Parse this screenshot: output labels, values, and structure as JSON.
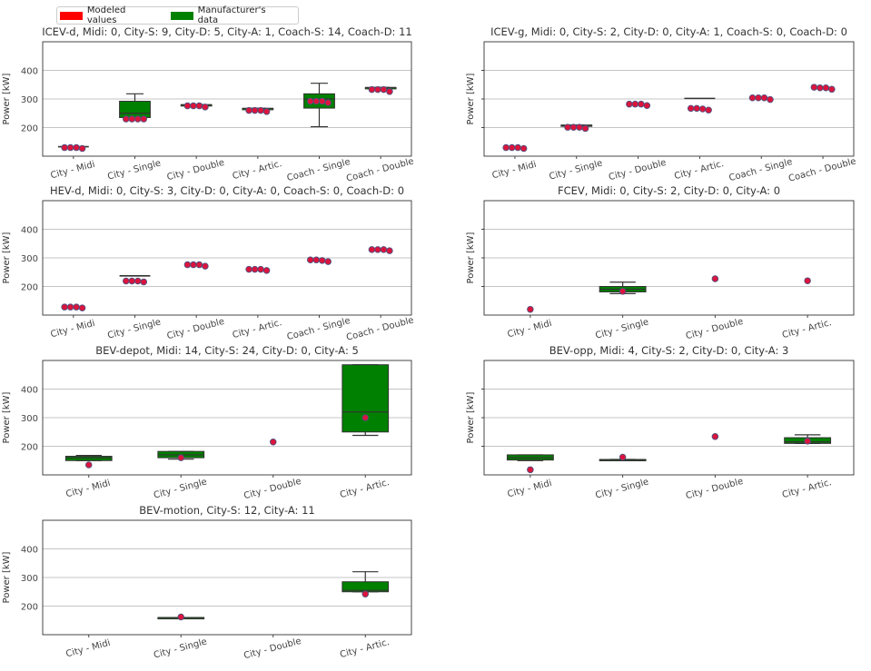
{
  "legend": {
    "entries": [
      {
        "label": "Modeled values",
        "color": "#ff0000"
      },
      {
        "label": "Manufacturer's data",
        "color": "#008000"
      }
    ]
  },
  "colors": {
    "box_fill": "#008000",
    "point_fill": "#dc143c",
    "point_edge": "#505080",
    "grid": "#b0b0b0"
  },
  "chart_data": [
    {
      "type": "box",
      "title": "ICEV-d, Midi: 0, City-S: 9, City-D: 5, City-A: 1, Coach-S: 14, Coach-D: 11",
      "ylabel": "Power [kW]",
      "ylim": [
        100,
        500
      ],
      "yticks": [
        200,
        300,
        400
      ],
      "show_ytick_labels": true,
      "categories": [
        "City - Midi",
        "City - Single",
        "City - Double",
        "City - Artic.",
        "Coach - Single",
        "Coach - Double"
      ],
      "boxes": [
        null,
        {
          "whislo": 228,
          "q1": 235,
          "med": 250,
          "q3": 292,
          "whishi": 318
        },
        {
          "whislo": 280,
          "q1": 280,
          "med": 280,
          "q3": 280,
          "whishi": 280
        },
        {
          "whislo": 267,
          "q1": 267,
          "med": 267,
          "q3": 267,
          "whishi": 267
        },
        {
          "whislo": 203,
          "q1": 268,
          "med": 300,
          "q3": 318,
          "whishi": 355
        },
        {
          "whislo": 340,
          "q1": 340,
          "med": 340,
          "q3": 340,
          "whishi": 340
        }
      ],
      "lines": [
        {
          "cat": 0,
          "value": 133
        }
      ],
      "points": [
        [
          130,
          130,
          130,
          127
        ],
        [
          230,
          230,
          230,
          230
        ],
        [
          276,
          276,
          276,
          272
        ],
        [
          260,
          260,
          260,
          256
        ],
        [
          292,
          292,
          292,
          287
        ],
        [
          333,
          333,
          333,
          326
        ]
      ]
    },
    {
      "type": "box",
      "title": "ICEV-g, Midi: 0, City-S: 2, City-D: 0, City-A: 1, Coach-S: 0, Coach-D: 0",
      "ylabel": "Power [kW]",
      "ylim": [
        100,
        500
      ],
      "yticks": [
        200,
        300,
        400
      ],
      "show_ytick_labels": false,
      "categories": [
        "City - Midi",
        "City - Single",
        "City - Double",
        "City - Artic.",
        "Coach - Single",
        "Coach - Double"
      ],
      "boxes": [
        null,
        {
          "whislo": 205,
          "q1": 205,
          "med": 207,
          "q3": 209,
          "whishi": 209
        },
        null,
        null,
        null,
        null
      ],
      "lines": [
        {
          "cat": 3,
          "value": 302
        }
      ],
      "points": [
        [
          130,
          130,
          130,
          127
        ],
        [
          201,
          201,
          201,
          197
        ],
        [
          282,
          282,
          282,
          277
        ],
        [
          267,
          267,
          265,
          261
        ],
        [
          304,
          304,
          304,
          298
        ],
        [
          341,
          339,
          339,
          334
        ]
      ]
    },
    {
      "type": "box",
      "title": "HEV-d, Midi: 0, City-S: 3, City-D: 0, City-A: 0, Coach-S: 0, Coach-D: 0",
      "ylabel": "Power [kW]",
      "ylim": [
        100,
        500
      ],
      "yticks": [
        200,
        300,
        400
      ],
      "show_ytick_labels": true,
      "categories": [
        "City - Midi",
        "City - Single",
        "City - Double",
        "City - Artic.",
        "Coach - Single",
        "Coach - Double"
      ],
      "boxes": [
        null,
        null,
        null,
        null,
        null,
        null
      ],
      "lines": [
        {
          "cat": 1,
          "value": 237
        }
      ],
      "points": [
        [
          128,
          128,
          128,
          125
        ],
        [
          219,
          219,
          219,
          216
        ],
        [
          276,
          276,
          276,
          271
        ],
        [
          260,
          260,
          260,
          256
        ],
        [
          293,
          293,
          291,
          287
        ],
        [
          329,
          329,
          329,
          325
        ]
      ]
    },
    {
      "type": "box",
      "title": "FCEV, Midi: 0, City-S: 2, City-D: 0, City-A: 0",
      "ylabel": "Power [kW]",
      "ylim": [
        100,
        500
      ],
      "yticks": [
        200,
        300,
        400
      ],
      "show_ytick_labels": false,
      "categories": [
        "City - Midi",
        "City - Single",
        "City - Double",
        "City - Artic."
      ],
      "boxes": [
        null,
        {
          "whislo": 175,
          "q1": 181,
          "med": 190,
          "q3": 200,
          "whishi": 215
        },
        null,
        null
      ],
      "lines": [],
      "points": [
        [
          120
        ],
        [
          183
        ],
        [
          227
        ],
        [
          220
        ]
      ]
    },
    {
      "type": "box",
      "title": "BEV-depot, Midi: 14, City-S: 24, City-D: 0, City-A: 5",
      "ylabel": "Power [kW]",
      "ylim": [
        100,
        500
      ],
      "yticks": [
        200,
        300,
        400
      ],
      "show_ytick_labels": true,
      "categories": [
        "City - Midi",
        "City - Single",
        "City - Double",
        "City - Artic."
      ],
      "boxes": [
        {
          "whislo": 150,
          "q1": 150,
          "med": 160,
          "q3": 165,
          "whishi": 168
        },
        {
          "whislo": 155,
          "q1": 160,
          "med": 170,
          "q3": 182,
          "whishi": 182
        },
        null,
        {
          "whislo": 238,
          "q1": 250,
          "med": 320,
          "q3": 485,
          "whishi": 485
        }
      ],
      "lines": [],
      "points": [
        [
          135
        ],
        [
          160
        ],
        [
          215
        ],
        [
          300
        ]
      ]
    },
    {
      "type": "box",
      "title": "BEV-opp, Midi: 4, City-S: 2, City-D: 0, City-A: 3",
      "ylabel": "Power [kW]",
      "ylim": [
        100,
        500
      ],
      "yticks": [
        200,
        300,
        400
      ],
      "show_ytick_labels": false,
      "categories": [
        "City - Midi",
        "City - Single",
        "City - Double",
        "City - Artic."
      ],
      "boxes": [
        {
          "whislo": 150,
          "q1": 152,
          "med": 160,
          "q3": 170,
          "whishi": 170
        },
        {
          "whislo": 151,
          "q1": 151,
          "med": 153,
          "q3": 154,
          "whishi": 154
        },
        null,
        {
          "whislo": 210,
          "q1": 210,
          "med": 215,
          "q3": 230,
          "whishi": 240
        }
      ],
      "lines": [],
      "points": [
        [
          118
        ],
        [
          162
        ],
        [
          234
        ],
        [
          218
        ]
      ]
    },
    {
      "type": "box",
      "title": "BEV-motion, City-S: 12, City-A: 11",
      "ylabel": "Power [kW]",
      "ylim": [
        100,
        500
      ],
      "yticks": [
        200,
        300,
        400
      ],
      "show_ytick_labels": true,
      "categories": [
        "City - Midi",
        "City - Single",
        "City - Double",
        "City - Artic."
      ],
      "boxes": [
        null,
        {
          "whislo": 160,
          "q1": 160,
          "med": 160,
          "q3": 160,
          "whishi": 160
        },
        null,
        {
          "whislo": 250,
          "q1": 250,
          "med": 255,
          "q3": 285,
          "whishi": 320
        }
      ],
      "lines": [],
      "points": [
        [],
        [
          162
        ],
        [],
        [
          242
        ]
      ]
    }
  ]
}
